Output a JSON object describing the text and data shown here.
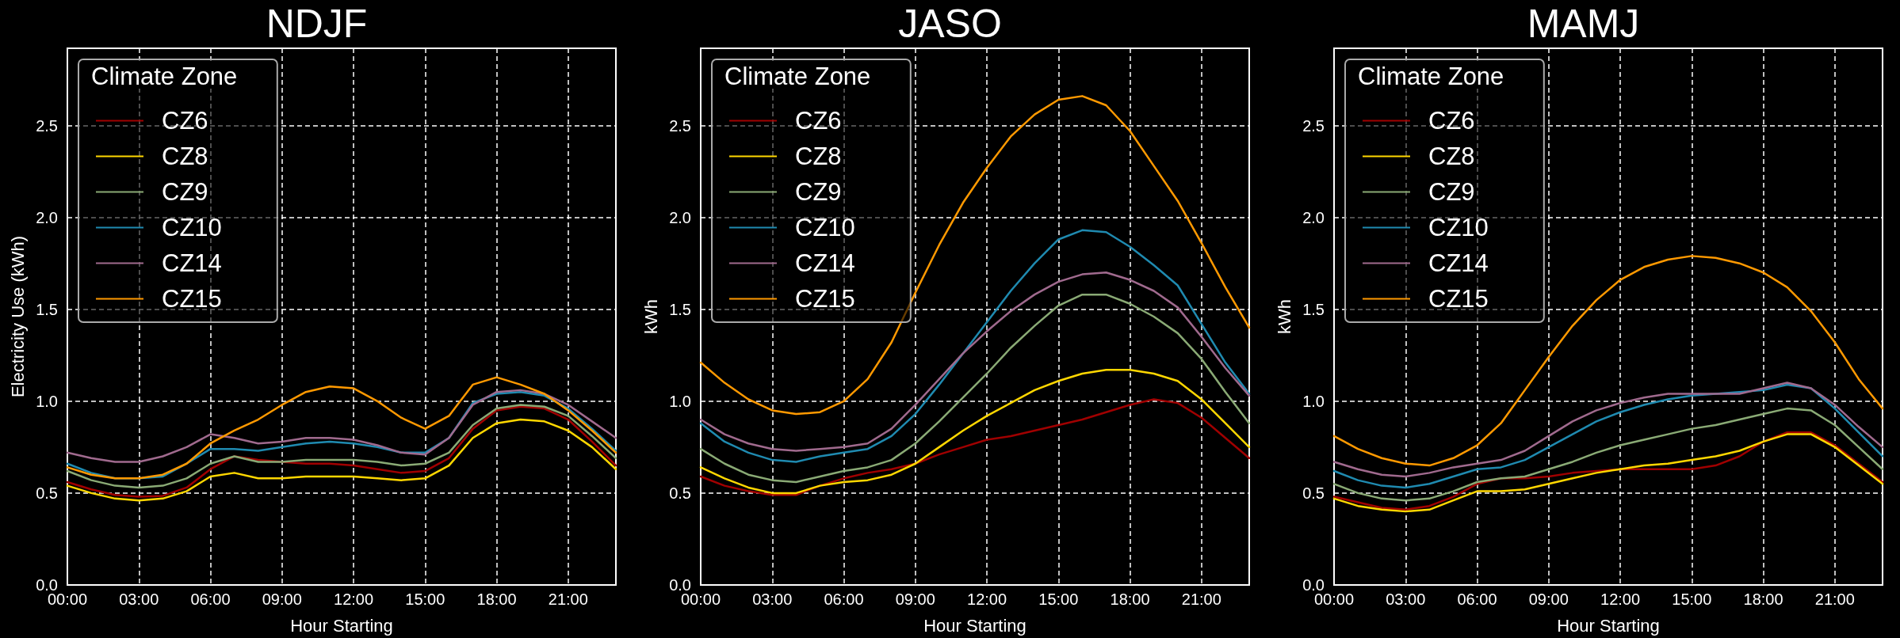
{
  "chart_data": [
    {
      "type": "line",
      "title": "NDJF",
      "xlabel": "Hour Starting",
      "ylabel": "Electricity Use (kWh)",
      "legend_title": "Climate Zone",
      "x": [
        0,
        1,
        2,
        3,
        4,
        5,
        6,
        7,
        8,
        9,
        10,
        11,
        12,
        13,
        14,
        15,
        16,
        17,
        18,
        19,
        20,
        21,
        22,
        23
      ],
      "xlim": [
        0,
        23
      ],
      "xticks": [
        {
          "value": 0,
          "label": "00:00"
        },
        {
          "value": 3,
          "label": "03:00"
        },
        {
          "value": 6,
          "label": "06:00"
        },
        {
          "value": 9,
          "label": "09:00"
        },
        {
          "value": 12,
          "label": "12:00"
        },
        {
          "value": 15,
          "label": "15:00"
        },
        {
          "value": 18,
          "label": "18:00"
        },
        {
          "value": 21,
          "label": "21:00"
        }
      ],
      "ylim": [
        0,
        2.92
      ],
      "yticks": [
        {
          "value": 0,
          "label": "0.0"
        },
        {
          "value": 0.5,
          "label": "0.5"
        },
        {
          "value": 1,
          "label": "1.0"
        },
        {
          "value": 1.5,
          "label": "1.5"
        },
        {
          "value": 2,
          "label": "2.0"
        },
        {
          "value": 2.5,
          "label": "2.5"
        }
      ],
      "grid": true,
      "legend": "top left",
      "marker": "none",
      "line_style": "solid",
      "series": [
        {
          "name": "CZ6",
          "color": "#a00000",
          "values": [
            0.56,
            0.52,
            0.49,
            0.48,
            0.485,
            0.53,
            0.63,
            0.7,
            0.68,
            0.67,
            0.66,
            0.66,
            0.65,
            0.63,
            0.61,
            0.62,
            0.69,
            0.85,
            0.95,
            0.97,
            0.96,
            0.9,
            0.78,
            0.65
          ]
        },
        {
          "name": "CZ8",
          "color": "#ffd700",
          "values": [
            0.54,
            0.5,
            0.47,
            0.46,
            0.47,
            0.51,
            0.59,
            0.61,
            0.58,
            0.58,
            0.59,
            0.59,
            0.59,
            0.58,
            0.57,
            0.58,
            0.65,
            0.8,
            0.88,
            0.9,
            0.89,
            0.84,
            0.75,
            0.63
          ]
        },
        {
          "name": "CZ9",
          "color": "#8aaa75",
          "values": [
            0.62,
            0.57,
            0.54,
            0.53,
            0.54,
            0.58,
            0.66,
            0.7,
            0.67,
            0.67,
            0.68,
            0.68,
            0.68,
            0.67,
            0.65,
            0.66,
            0.72,
            0.87,
            0.96,
            0.98,
            0.97,
            0.92,
            0.81,
            0.69
          ]
        },
        {
          "name": "CZ10",
          "color": "#1f8ab0",
          "values": [
            0.66,
            0.61,
            0.58,
            0.58,
            0.59,
            0.66,
            0.74,
            0.74,
            0.73,
            0.75,
            0.77,
            0.78,
            0.77,
            0.75,
            0.72,
            0.72,
            0.8,
            0.99,
            1.04,
            1.05,
            1.03,
            0.96,
            0.85,
            0.73
          ]
        },
        {
          "name": "CZ14",
          "color": "#a06a8e",
          "values": [
            0.72,
            0.69,
            0.67,
            0.67,
            0.7,
            0.75,
            0.82,
            0.8,
            0.77,
            0.78,
            0.8,
            0.8,
            0.79,
            0.76,
            0.72,
            0.71,
            0.8,
            0.98,
            1.05,
            1.06,
            1.04,
            0.98,
            0.89,
            0.8
          ]
        },
        {
          "name": "CZ15",
          "color": "#ff9900",
          "values": [
            0.64,
            0.6,
            0.58,
            0.58,
            0.6,
            0.66,
            0.77,
            0.84,
            0.9,
            0.98,
            1.05,
            1.08,
            1.07,
            1.0,
            0.91,
            0.85,
            0.92,
            1.09,
            1.13,
            1.09,
            1.04,
            0.95,
            0.84,
            0.72
          ]
        }
      ]
    },
    {
      "type": "line",
      "title": "JASO",
      "xlabel": "Hour Starting",
      "ylabel": "kWh",
      "legend_title": "Climate Zone",
      "x": [
        0,
        1,
        2,
        3,
        4,
        5,
        6,
        7,
        8,
        9,
        10,
        11,
        12,
        13,
        14,
        15,
        16,
        17,
        18,
        19,
        20,
        21,
        22,
        23
      ],
      "xlim": [
        0,
        23
      ],
      "xticks": [
        {
          "value": 0,
          "label": "00:00"
        },
        {
          "value": 3,
          "label": "03:00"
        },
        {
          "value": 6,
          "label": "06:00"
        },
        {
          "value": 9,
          "label": "09:00"
        },
        {
          "value": 12,
          "label": "12:00"
        },
        {
          "value": 15,
          "label": "15:00"
        },
        {
          "value": 18,
          "label": "18:00"
        },
        {
          "value": 21,
          "label": "21:00"
        }
      ],
      "ylim": [
        0,
        2.92
      ],
      "yticks": [
        {
          "value": 0,
          "label": "0.0"
        },
        {
          "value": 0.5,
          "label": "0.5"
        },
        {
          "value": 1,
          "label": "1.0"
        },
        {
          "value": 1.5,
          "label": "1.5"
        },
        {
          "value": 2,
          "label": "2.0"
        },
        {
          "value": 2.5,
          "label": "2.5"
        }
      ],
      "grid": true,
      "legend": "top left",
      "marker": "none",
      "line_style": "solid",
      "series": [
        {
          "name": "CZ6",
          "color": "#a00000",
          "values": [
            0.59,
            0.54,
            0.51,
            0.49,
            0.49,
            0.54,
            0.58,
            0.61,
            0.63,
            0.66,
            0.71,
            0.75,
            0.79,
            0.81,
            0.84,
            0.87,
            0.9,
            0.94,
            0.98,
            1.01,
            0.99,
            0.91,
            0.8,
            0.69
          ]
        },
        {
          "name": "CZ8",
          "color": "#ffd700",
          "values": [
            0.64,
            0.58,
            0.53,
            0.5,
            0.5,
            0.54,
            0.56,
            0.57,
            0.6,
            0.66,
            0.75,
            0.84,
            0.92,
            0.99,
            1.06,
            1.11,
            1.15,
            1.17,
            1.17,
            1.15,
            1.11,
            1.01,
            0.88,
            0.75
          ]
        },
        {
          "name": "CZ9",
          "color": "#8aaa75",
          "values": [
            0.74,
            0.66,
            0.6,
            0.57,
            0.56,
            0.59,
            0.62,
            0.64,
            0.68,
            0.77,
            0.89,
            1.02,
            1.15,
            1.29,
            1.41,
            1.52,
            1.58,
            1.58,
            1.53,
            1.46,
            1.37,
            1.23,
            1.05,
            0.88
          ]
        },
        {
          "name": "CZ10",
          "color": "#1f8ab0",
          "values": [
            0.88,
            0.78,
            0.72,
            0.68,
            0.67,
            0.7,
            0.72,
            0.74,
            0.81,
            0.93,
            1.09,
            1.26,
            1.43,
            1.6,
            1.75,
            1.88,
            1.93,
            1.92,
            1.84,
            1.74,
            1.63,
            1.42,
            1.21,
            1.04
          ]
        },
        {
          "name": "CZ14",
          "color": "#a06a8e",
          "values": [
            0.9,
            0.82,
            0.77,
            0.74,
            0.73,
            0.74,
            0.75,
            0.77,
            0.85,
            0.98,
            1.12,
            1.26,
            1.38,
            1.49,
            1.58,
            1.65,
            1.69,
            1.7,
            1.66,
            1.6,
            1.51,
            1.35,
            1.18,
            1.03
          ]
        },
        {
          "name": "CZ15",
          "color": "#ff9900",
          "values": [
            1.21,
            1.1,
            1.01,
            0.95,
            0.93,
            0.94,
            1.0,
            1.12,
            1.32,
            1.59,
            1.85,
            2.08,
            2.27,
            2.44,
            2.56,
            2.64,
            2.66,
            2.61,
            2.47,
            2.28,
            2.09,
            1.86,
            1.62,
            1.4
          ]
        }
      ]
    },
    {
      "type": "line",
      "title": "MAMJ",
      "xlabel": "Hour Starting",
      "ylabel": "kWh",
      "legend_title": "Climate Zone",
      "x": [
        0,
        1,
        2,
        3,
        4,
        5,
        6,
        7,
        8,
        9,
        10,
        11,
        12,
        13,
        14,
        15,
        16,
        17,
        18,
        19,
        20,
        21,
        22,
        23
      ],
      "xlim": [
        0,
        23
      ],
      "xticks": [
        {
          "value": 0,
          "label": "00:00"
        },
        {
          "value": 3,
          "label": "03:00"
        },
        {
          "value": 6,
          "label": "06:00"
        },
        {
          "value": 9,
          "label": "09:00"
        },
        {
          "value": 12,
          "label": "12:00"
        },
        {
          "value": 15,
          "label": "15:00"
        },
        {
          "value": 18,
          "label": "18:00"
        },
        {
          "value": 21,
          "label": "21:00"
        }
      ],
      "ylim": [
        0,
        2.92
      ],
      "yticks": [
        {
          "value": 0,
          "label": "0.0"
        },
        {
          "value": 0.5,
          "label": "0.5"
        },
        {
          "value": 1,
          "label": "1.0"
        },
        {
          "value": 1.5,
          "label": "1.5"
        },
        {
          "value": 2,
          "label": "2.0"
        },
        {
          "value": 2.5,
          "label": "2.5"
        }
      ],
      "grid": true,
      "legend": "top left",
      "marker": "none",
      "line_style": "solid",
      "series": [
        {
          "name": "CZ6",
          "color": "#a00000",
          "values": [
            0.48,
            0.45,
            0.42,
            0.41,
            0.43,
            0.48,
            0.55,
            0.58,
            0.58,
            0.59,
            0.61,
            0.62,
            0.63,
            0.63,
            0.63,
            0.63,
            0.65,
            0.7,
            0.78,
            0.83,
            0.83,
            0.76,
            0.66,
            0.56
          ]
        },
        {
          "name": "CZ8",
          "color": "#ffd700",
          "values": [
            0.47,
            0.43,
            0.41,
            0.4,
            0.41,
            0.46,
            0.51,
            0.51,
            0.52,
            0.55,
            0.58,
            0.61,
            0.63,
            0.65,
            0.66,
            0.68,
            0.7,
            0.73,
            0.78,
            0.82,
            0.82,
            0.75,
            0.65,
            0.55
          ]
        },
        {
          "name": "CZ9",
          "color": "#8aaa75",
          "values": [
            0.55,
            0.5,
            0.47,
            0.46,
            0.47,
            0.51,
            0.56,
            0.58,
            0.59,
            0.63,
            0.67,
            0.72,
            0.76,
            0.79,
            0.82,
            0.85,
            0.87,
            0.9,
            0.93,
            0.96,
            0.95,
            0.87,
            0.75,
            0.63
          ]
        },
        {
          "name": "CZ10",
          "color": "#1f8ab0",
          "values": [
            0.62,
            0.57,
            0.54,
            0.53,
            0.55,
            0.59,
            0.63,
            0.64,
            0.68,
            0.75,
            0.82,
            0.89,
            0.94,
            0.98,
            1.01,
            1.03,
            1.04,
            1.05,
            1.06,
            1.09,
            1.07,
            0.96,
            0.83,
            0.7
          ]
        },
        {
          "name": "CZ14",
          "color": "#a06a8e",
          "values": [
            0.67,
            0.63,
            0.6,
            0.59,
            0.61,
            0.64,
            0.66,
            0.68,
            0.73,
            0.81,
            0.89,
            0.95,
            0.99,
            1.02,
            1.04,
            1.04,
            1.04,
            1.04,
            1.07,
            1.1,
            1.07,
            0.98,
            0.86,
            0.75
          ]
        },
        {
          "name": "CZ15",
          "color": "#ff9900",
          "values": [
            0.81,
            0.74,
            0.69,
            0.66,
            0.65,
            0.69,
            0.76,
            0.88,
            1.06,
            1.24,
            1.41,
            1.55,
            1.66,
            1.73,
            1.77,
            1.79,
            1.78,
            1.75,
            1.7,
            1.62,
            1.49,
            1.32,
            1.12,
            0.96
          ]
        }
      ]
    }
  ]
}
